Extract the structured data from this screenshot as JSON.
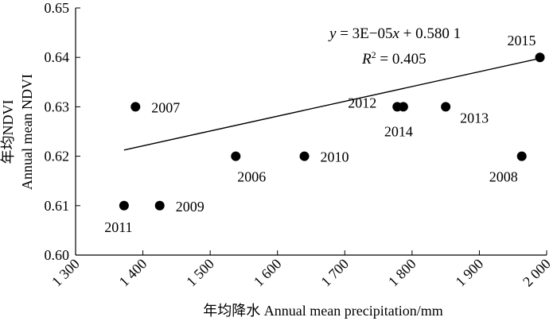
{
  "chart_data": {
    "type": "scatter",
    "xlabel": "年均降水 Annual mean precipitation/mm",
    "ylabel_cn": "年均NDVI",
    "ylabel_en": "Annual mean NDVI",
    "xlim": [
      1300,
      2000
    ],
    "ylim": [
      0.6,
      0.65
    ],
    "xticks": [
      1300,
      1400,
      1500,
      1600,
      1700,
      1800,
      1900,
      2000
    ],
    "xtick_labels": [
      "1 300",
      "1 400",
      "1 500",
      "1 600",
      "1 700",
      "1 800",
      "1 900",
      "2 000"
    ],
    "yticks": [
      0.6,
      0.61,
      0.62,
      0.63,
      0.64,
      0.65
    ],
    "ytick_labels": [
      "0.60",
      "0.61",
      "0.62",
      "0.63",
      "0.64",
      "0.65"
    ],
    "grid": false,
    "points": [
      {
        "label": "2011",
        "x": 1372,
        "y": 0.61
      },
      {
        "label": "2009",
        "x": 1425,
        "y": 0.61
      },
      {
        "label": "2007",
        "x": 1389,
        "y": 0.63
      },
      {
        "label": "2006",
        "x": 1538,
        "y": 0.62
      },
      {
        "label": "2010",
        "x": 1640,
        "y": 0.62
      },
      {
        "label": "2012",
        "x": 1778,
        "y": 0.63
      },
      {
        "label": "2014",
        "x": 1787,
        "y": 0.63
      },
      {
        "label": "2013",
        "x": 1850,
        "y": 0.63
      },
      {
        "label": "2008",
        "x": 1963,
        "y": 0.62
      },
      {
        "label": "2015",
        "x": 1990,
        "y": 0.64
      }
    ],
    "trendline": {
      "x_range": [
        1372,
        1990
      ],
      "slope": 3e-05,
      "intercept": 0.5801,
      "equation_text": "y = 3E−05x + 0.580 1",
      "r2_text": "R² = 0.405"
    }
  }
}
